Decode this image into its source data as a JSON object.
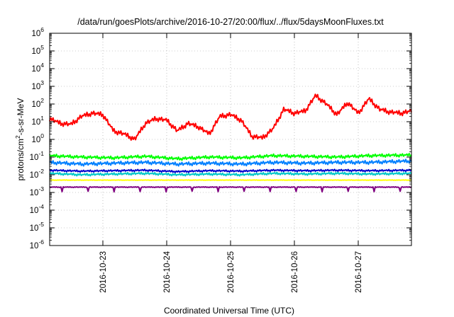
{
  "chart_data": {
    "type": "line",
    "title": "/data/run/goesPlots/archive/2016-10-27/20:00/flux/../flux/5daysMoonFluxes.txt",
    "xlabel": "Coordinated Universal Time (UTC)",
    "ylabel": "protons/cm²-s-sr-MeV",
    "ylabel_parts": {
      "pre": "protons/cm",
      "sup": "2",
      "post": "-s-sr-MeV"
    },
    "yscale": "log",
    "ylim": [
      1e-06,
      1000000.0
    ],
    "y_ticks": [
      {
        "base": "10",
        "exp": "-6"
      },
      {
        "base": "10",
        "exp": "-5"
      },
      {
        "base": "10",
        "exp": "-4"
      },
      {
        "base": "10",
        "exp": "-3"
      },
      {
        "base": "10",
        "exp": "-2"
      },
      {
        "base": "10",
        "exp": "-1"
      },
      {
        "base": "10",
        "exp": "0"
      },
      {
        "base": "10",
        "exp": "1"
      },
      {
        "base": "10",
        "exp": "2"
      },
      {
        "base": "10",
        "exp": "3"
      },
      {
        "base": "10",
        "exp": "4"
      },
      {
        "base": "10",
        "exp": "5"
      },
      {
        "base": "10",
        "exp": "6"
      }
    ],
    "x_ticks": [
      "2016-10-23",
      "2016-10-24",
      "2016-10-25",
      "2016-10-26",
      "2016-10-27"
    ],
    "xlim": [
      "2016-10-22 04:00",
      "2016-10-27 20:00"
    ],
    "grid": true,
    "legend": "none",
    "series": [
      {
        "color": "#ff0000",
        "x": [
          "2016-10-22 04:00",
          "2016-10-22 08:00",
          "2016-10-22 12:00",
          "2016-10-22 16:00",
          "2016-10-22 20:00",
          "2016-10-23 00:00",
          "2016-10-23 04:00",
          "2016-10-23 08:00",
          "2016-10-23 12:00",
          "2016-10-23 16:00",
          "2016-10-23 20:00",
          "2016-10-24 00:00",
          "2016-10-24 04:00",
          "2016-10-24 08:00",
          "2016-10-24 12:00",
          "2016-10-24 16:00",
          "2016-10-24 20:00",
          "2016-10-25 00:00",
          "2016-10-25 04:00",
          "2016-10-25 08:00",
          "2016-10-25 12:00",
          "2016-10-25 16:00",
          "2016-10-25 20:00",
          "2016-10-26 00:00",
          "2016-10-26 04:00",
          "2016-10-26 08:00",
          "2016-10-26 12:00",
          "2016-10-26 16:00",
          "2016-10-26 20:00",
          "2016-10-27 00:00",
          "2016-10-27 04:00",
          "2016-10-27 08:00",
          "2016-10-27 12:00",
          "2016-10-27 16:00",
          "2016-10-27 20:00"
        ],
        "y": [
          15,
          8,
          7,
          20,
          30,
          25,
          3,
          2,
          1,
          8,
          15,
          12,
          3,
          8,
          5,
          2,
          20,
          25,
          12,
          1.5,
          1.2,
          4,
          50,
          30,
          40,
          300,
          100,
          25,
          120,
          30,
          200,
          50,
          35,
          30,
          40
        ]
      },
      {
        "color": "#00ff00",
        "x": [
          "2016-10-22 04:00",
          "2016-10-22 16:00",
          "2016-10-23 04:00",
          "2016-10-23 16:00",
          "2016-10-24 04:00",
          "2016-10-24 16:00",
          "2016-10-25 04:00",
          "2016-10-25 16:00",
          "2016-10-26 04:00",
          "2016-10-26 16:00",
          "2016-10-27 04:00",
          "2016-10-27 20:00"
        ],
        "y": [
          0.12,
          0.1,
          0.09,
          0.11,
          0.08,
          0.1,
          0.09,
          0.12,
          0.11,
          0.1,
          0.12,
          0.13
        ]
      },
      {
        "color": "#0080ff",
        "x": [
          "2016-10-22 04:00",
          "2016-10-22 16:00",
          "2016-10-23 04:00",
          "2016-10-23 16:00",
          "2016-10-24 04:00",
          "2016-10-24 16:00",
          "2016-10-25 04:00",
          "2016-10-25 16:00",
          "2016-10-26 04:00",
          "2016-10-26 16:00",
          "2016-10-27 04:00",
          "2016-10-27 20:00"
        ],
        "y": [
          0.05,
          0.04,
          0.045,
          0.05,
          0.04,
          0.045,
          0.04,
          0.05,
          0.045,
          0.05,
          0.05,
          0.06
        ]
      },
      {
        "color": "#00c8c8",
        "x": [
          "2016-10-22 04:00",
          "2016-10-22 16:00",
          "2016-10-23 04:00",
          "2016-10-23 16:00",
          "2016-10-24 04:00",
          "2016-10-24 16:00",
          "2016-10-25 04:00",
          "2016-10-25 16:00",
          "2016-10-26 04:00",
          "2016-10-26 16:00",
          "2016-10-27 04:00",
          "2016-10-27 20:00"
        ],
        "y": [
          0.012,
          0.01,
          0.011,
          0.012,
          0.01,
          0.011,
          0.01,
          0.012,
          0.011,
          0.012,
          0.011,
          0.012
        ]
      },
      {
        "color": "#0000cc",
        "x": [
          "2016-10-22 04:00",
          "2016-10-22 16:00",
          "2016-10-23 04:00",
          "2016-10-23 16:00",
          "2016-10-24 04:00",
          "2016-10-24 16:00",
          "2016-10-25 04:00",
          "2016-10-25 16:00",
          "2016-10-26 04:00",
          "2016-10-26 16:00",
          "2016-10-27 04:00",
          "2016-10-27 20:00"
        ],
        "y": [
          0.018,
          0.016,
          0.017,
          0.018,
          0.015,
          0.017,
          0.016,
          0.018,
          0.017,
          0.018,
          0.017,
          0.018
        ]
      },
      {
        "color": "#ffff00",
        "x": [
          "2016-10-22 04:00",
          "2016-10-22 16:00",
          "2016-10-23 04:00",
          "2016-10-23 16:00",
          "2016-10-24 04:00",
          "2016-10-24 16:00",
          "2016-10-25 04:00",
          "2016-10-25 16:00",
          "2016-10-26 04:00",
          "2016-10-26 16:00",
          "2016-10-27 04:00",
          "2016-10-27 20:00"
        ],
        "y": [
          0.005,
          0.005,
          0.005,
          0.005,
          0.005,
          0.005,
          0.005,
          0.005,
          0.005,
          0.005,
          0.005,
          0.005
        ]
      },
      {
        "color": "#800080",
        "x": [
          "2016-10-22 04:00",
          "2016-10-22 16:00",
          "2016-10-23 04:00",
          "2016-10-23 16:00",
          "2016-10-24 04:00",
          "2016-10-24 16:00",
          "2016-10-25 04:00",
          "2016-10-25 16:00",
          "2016-10-26 04:00",
          "2016-10-26 16:00",
          "2016-10-27 04:00",
          "2016-10-27 20:00"
        ],
        "y": [
          0.002,
          0.002,
          0.002,
          0.002,
          0.002,
          0.002,
          0.002,
          0.002,
          0.002,
          0.002,
          0.002,
          0.002
        ]
      }
    ]
  }
}
